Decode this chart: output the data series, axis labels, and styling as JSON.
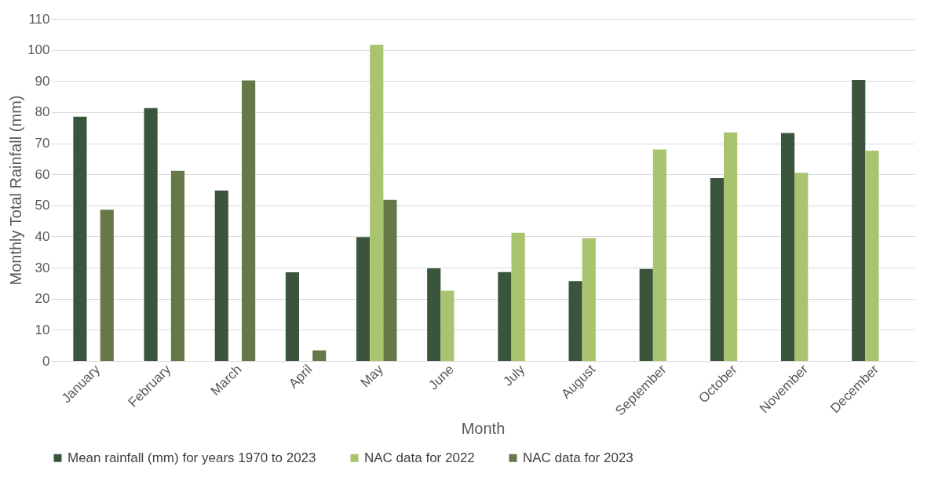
{
  "chart_data": {
    "type": "bar",
    "xlabel": "Month",
    "ylabel": "Monthly Total Rainfall (mm)",
    "categories": [
      "January",
      "February",
      "March",
      "April",
      "May",
      "June",
      "July",
      "August",
      "September",
      "October",
      "November",
      "December"
    ],
    "series": [
      {
        "name": "Mean rainfall (mm) for years 1970 to 2023",
        "color": "#3b553c",
        "values": [
          78.5,
          81.3,
          54.8,
          28.5,
          39.8,
          29.8,
          28.6,
          25.7,
          29.6,
          58.8,
          73.3,
          90.3
        ]
      },
      {
        "name": "NAC data for 2022",
        "color": "#a9c46e",
        "values": [
          null,
          null,
          null,
          null,
          101.7,
          22.6,
          41.2,
          39.5,
          68,
          73.5,
          60.5,
          67.6
        ]
      },
      {
        "name": "NAC data for 2023",
        "color": "#667848",
        "values": [
          48.6,
          61.1,
          90.2,
          3.4,
          51.8,
          null,
          null,
          null,
          null,
          null,
          null,
          null
        ]
      }
    ],
    "ylim": [
      0,
      110
    ],
    "yticks": [
      0,
      10,
      20,
      30,
      40,
      50,
      60,
      70,
      80,
      90,
      100,
      110
    ],
    "grid": "y",
    "legend": "bottom"
  }
}
